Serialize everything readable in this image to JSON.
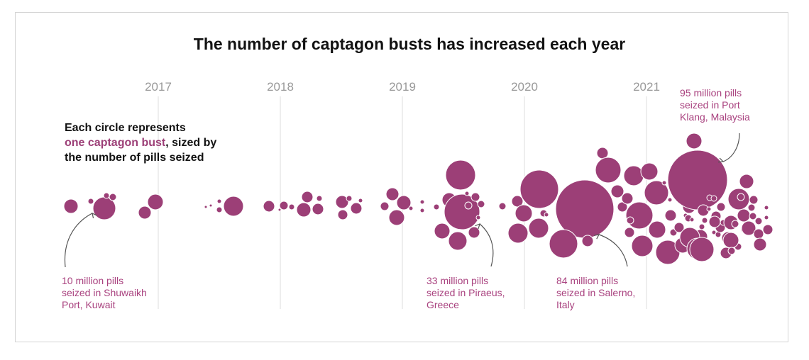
{
  "chart_data": {
    "type": "scatter",
    "title": "The number of captagon busts has increased each year",
    "x_ticks": [
      "2017",
      "2018",
      "2019",
      "2020",
      "2021"
    ],
    "legend": {
      "line1": "Each circle represents",
      "line2_accent": "one captagon bust",
      "line2_rest": ", sized by",
      "line3": "the number of pills seized"
    },
    "annotations": [
      {
        "lines": [
          "10 million pills",
          "seized in Shuwaikh",
          "Port, Kuwait"
        ],
        "pills_million": 10
      },
      {
        "lines": [
          "33 million pills",
          "seized in Piraeus,",
          "Greece"
        ],
        "pills_million": 33
      },
      {
        "lines": [
          "84 million pills",
          "seized in Salerno,",
          "Italy"
        ],
        "pills_million": 84
      },
      {
        "lines": [
          "95 million pills",
          "seized in Port",
          "Klang, Malaysia"
        ],
        "pills_million": 95
      }
    ],
    "colors": {
      "bubble": "#9c3f77",
      "annotation": "#a9427f",
      "year": "#999999"
    }
  }
}
